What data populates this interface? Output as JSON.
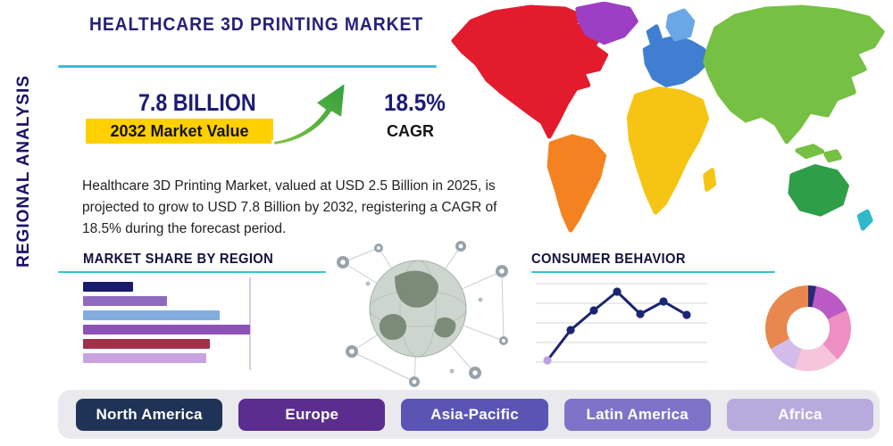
{
  "title": "HEALTHCARE 3D PRINTING MARKET",
  "sidebar_title": "REGIONAL ANALYSIS",
  "stats": {
    "value": "7.8 BILLION",
    "value_label": "2032 Market Value",
    "cagr": "18.5%",
    "cagr_label": "CAGR"
  },
  "description": "Healthcare 3D Printing Market, valued at USD 2.5 Billion in 2025, is projected to grow to USD 7.8 Billion by 2032, registering a CAGR of 18.5% during the forecast period.",
  "sections": {
    "market_share": {
      "title": "MARKET SHARE BY REGION"
    },
    "consumer_behavior": {
      "title": "CONSUMER BEHAVIOR"
    }
  },
  "accent_colors": {
    "teal_rule": "#38c0d4",
    "highlight_yellow": "#ffd000",
    "navy": "#221e78",
    "arrow_green": "#4caf50"
  },
  "icons": {
    "growth_arrow": "curved-up-right-arrow",
    "globe_network": "connected-globe-illustration"
  },
  "regions": [
    {
      "label": "North America",
      "color": "#1e3356"
    },
    {
      "label": "Europe",
      "color": "#5b2d8e"
    },
    {
      "label": "Asia-Pacific",
      "color": "#5a55b5"
    },
    {
      "label": "Latin America",
      "color": "#7d74c9"
    },
    {
      "label": "Africa",
      "color": "#b7abde"
    }
  ],
  "map": {
    "regions": [
      {
        "name": "North America",
        "color": "#e31c2d"
      },
      {
        "name": "Greenland",
        "color": "#9d3fc4"
      },
      {
        "name": "South America",
        "color": "#f58220"
      },
      {
        "name": "Europe",
        "color": "#3f7ed0"
      },
      {
        "name": "Northern Europe",
        "color": "#6aa7e6"
      },
      {
        "name": "United Kingdom",
        "color": "#3f7ed0"
      },
      {
        "name": "Africa",
        "color": "#f6c514"
      },
      {
        "name": "Madagascar",
        "color": "#f6c514"
      },
      {
        "name": "Asia",
        "color": "#76c043"
      },
      {
        "name": "Japan",
        "color": "#76c043"
      },
      {
        "name": "Indonesia",
        "color": "#76c043"
      },
      {
        "name": "Indonesia East",
        "color": "#76c043"
      },
      {
        "name": "Australia",
        "color": "#2f9e49"
      },
      {
        "name": "New Zealand",
        "color": "#2fb9c9"
      }
    ]
  },
  "chart_data": [
    {
      "type": "bar",
      "title": "MARKET SHARE BY REGION",
      "orientation": "horizontal",
      "categories_visible": false,
      "values_estimated": true,
      "values": [
        15,
        25,
        41,
        50,
        38,
        37
      ],
      "colors": [
        "#1b1b6e",
        "#8f6bbf",
        "#82aede",
        "#8d52b5",
        "#a03048",
        "#c9a3e0"
      ],
      "grid": "single vertical reference line"
    },
    {
      "type": "line",
      "title": "CONSUMER BEHAVIOR",
      "x": [
        1,
        2,
        3,
        4,
        5,
        6,
        7
      ],
      "values_estimated": true,
      "values": [
        10,
        44,
        66,
        87,
        62,
        76,
        61
      ],
      "line_color": "#1b2570",
      "first_marker_color": "#b7a3e3",
      "grid": "horizontal gridlines",
      "axis_labels_visible": false
    },
    {
      "type": "pie",
      "donut": true,
      "labels_visible": false,
      "values_estimated": true,
      "segments": [
        {
          "color": "#2a2a72",
          "value": 3
        },
        {
          "color": "#bb59c5",
          "value": 15
        },
        {
          "color": "#ee8fc3",
          "value": 20
        },
        {
          "color": "#f6c5dc",
          "value": 17
        },
        {
          "color": "#d3bce9",
          "value": 12
        },
        {
          "color": "#e8874e",
          "value": 33
        }
      ]
    }
  ]
}
